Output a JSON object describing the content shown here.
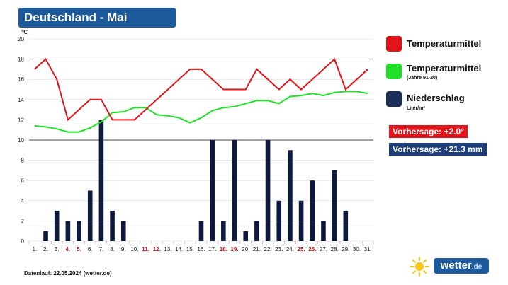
{
  "header": {
    "title": "Deutschland - Mai"
  },
  "legend": [
    {
      "label": "Temperaturmittel",
      "sub": "",
      "color": "#e3131a"
    },
    {
      "label": "Temperaturmittel",
      "sub": "(Jahre 91-20)",
      "color": "#22e02a"
    },
    {
      "label": "Niederschlag",
      "sub": "Liter/m²",
      "color": "#1c2f5a"
    }
  ],
  "forecast": {
    "temperature": "Vorhersage: +2.0°",
    "temperature_color": "#e3131a",
    "precipitation": "Vorhersage: +21.3 mm",
    "precipitation_color": "#1c3f79"
  },
  "footer": {
    "note": "Datenlauf: 22.05.2024 (wetter.de)"
  },
  "logo": {
    "text": "wetter",
    "suffix": ".de"
  },
  "chart_data": {
    "type": "bar+line",
    "ylabel": "°C",
    "ylim": [
      0,
      20
    ],
    "yticks": [
      "0",
      "2",
      "4",
      "6",
      "8",
      "10",
      "12",
      "14",
      "16",
      "18",
      "20"
    ],
    "categories": [
      "1.",
      "2.",
      "3.",
      "4.",
      "5.",
      "6.",
      "7.",
      "8.",
      "9.",
      "10.",
      "11.",
      "12.",
      "13.",
      "14.",
      "15.",
      "16.",
      "17.",
      "18.",
      "19.",
      "20.",
      "21.",
      "22.",
      "23.",
      "24.",
      "25.",
      "26.",
      "27.",
      "28.",
      "29.",
      "30.",
      "31."
    ],
    "highlight_categories": [
      "4.",
      "5.",
      "11.",
      "12.",
      "18.",
      "19.",
      "25.",
      "26."
    ],
    "highlight_color": "#c0141b",
    "grid_lines": [
      10,
      18
    ],
    "series": [
      {
        "name": "Niederschlag",
        "type": "bar",
        "color": "#0d1a3d",
        "values": [
          0,
          1,
          3,
          2,
          2,
          5,
          12,
          3,
          2,
          0,
          0,
          0,
          0,
          0,
          0,
          2,
          10,
          2,
          10,
          1,
          2,
          10,
          4,
          9,
          4,
          6,
          2,
          7,
          3,
          0,
          0
        ]
      },
      {
        "name": "Temperaturmittel",
        "type": "line",
        "color": "#e3131a",
        "values": [
          17,
          18,
          16,
          12,
          13,
          14,
          14,
          12,
          12,
          12,
          13,
          14,
          15,
          16,
          17,
          17,
          16,
          15,
          15,
          15,
          17,
          16,
          15,
          16,
          15,
          16,
          17,
          18,
          15,
          16,
          17
        ]
      },
      {
        "name": "Temperaturmittel (Jahre 91-20)",
        "type": "line",
        "color": "#22e02a",
        "values": [
          11.4,
          11.3,
          11.1,
          10.8,
          10.8,
          11.2,
          11.8,
          12.7,
          12.8,
          13.2,
          13.2,
          12.5,
          12.4,
          12.2,
          11.7,
          12.2,
          12.9,
          13.2,
          13.3,
          13.6,
          13.9,
          13.9,
          13.6,
          14.3,
          14.4,
          14.6,
          14.4,
          14.7,
          14.8,
          14.8,
          14.6
        ]
      }
    ]
  }
}
